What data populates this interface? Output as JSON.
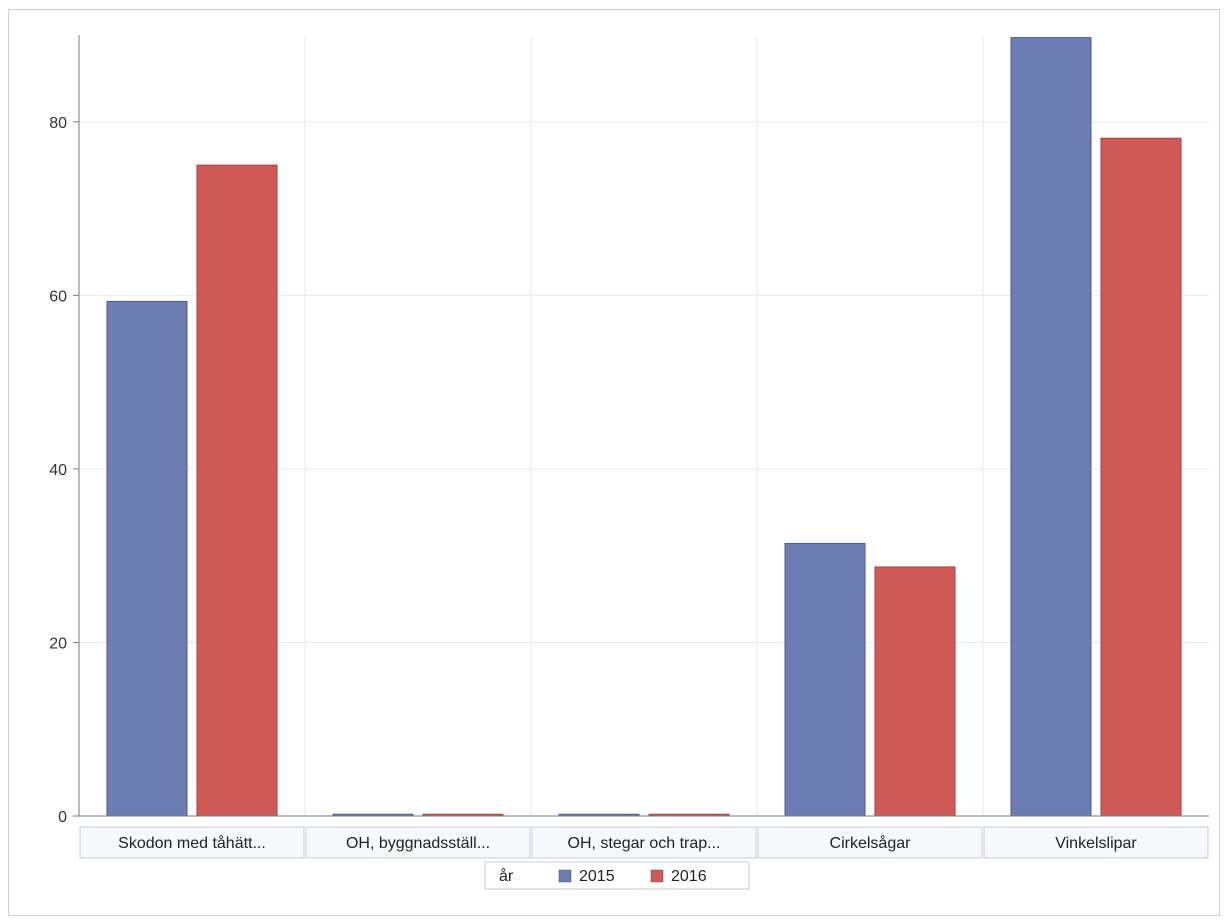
{
  "chart_data": {
    "type": "bar",
    "categories": [
      "Skodon med tåhätt...",
      "OH, byggnadsställ...",
      "OH, stegar och trap...",
      "Cirkelsågar",
      "Vinkelslipar"
    ],
    "series": [
      {
        "name": "2015",
        "values": [
          59.3,
          0.2,
          0.2,
          31.4,
          89.7
        ]
      },
      {
        "name": "2016",
        "values": [
          75.0,
          0.2,
          0.2,
          28.7,
          78.1
        ]
      }
    ],
    "title": "",
    "xlabel": "",
    "ylabel": "",
    "ylim": [
      0,
      90
    ],
    "yticks": [
      0,
      20,
      40,
      60,
      80
    ],
    "grid": true,
    "legend": {
      "title": "år",
      "position": "bottom-center"
    },
    "colors": {
      "2015": "#6b7db3",
      "2016": "#d05a58",
      "grid": "#ebebeb",
      "axis": "#7a7a7a"
    }
  }
}
